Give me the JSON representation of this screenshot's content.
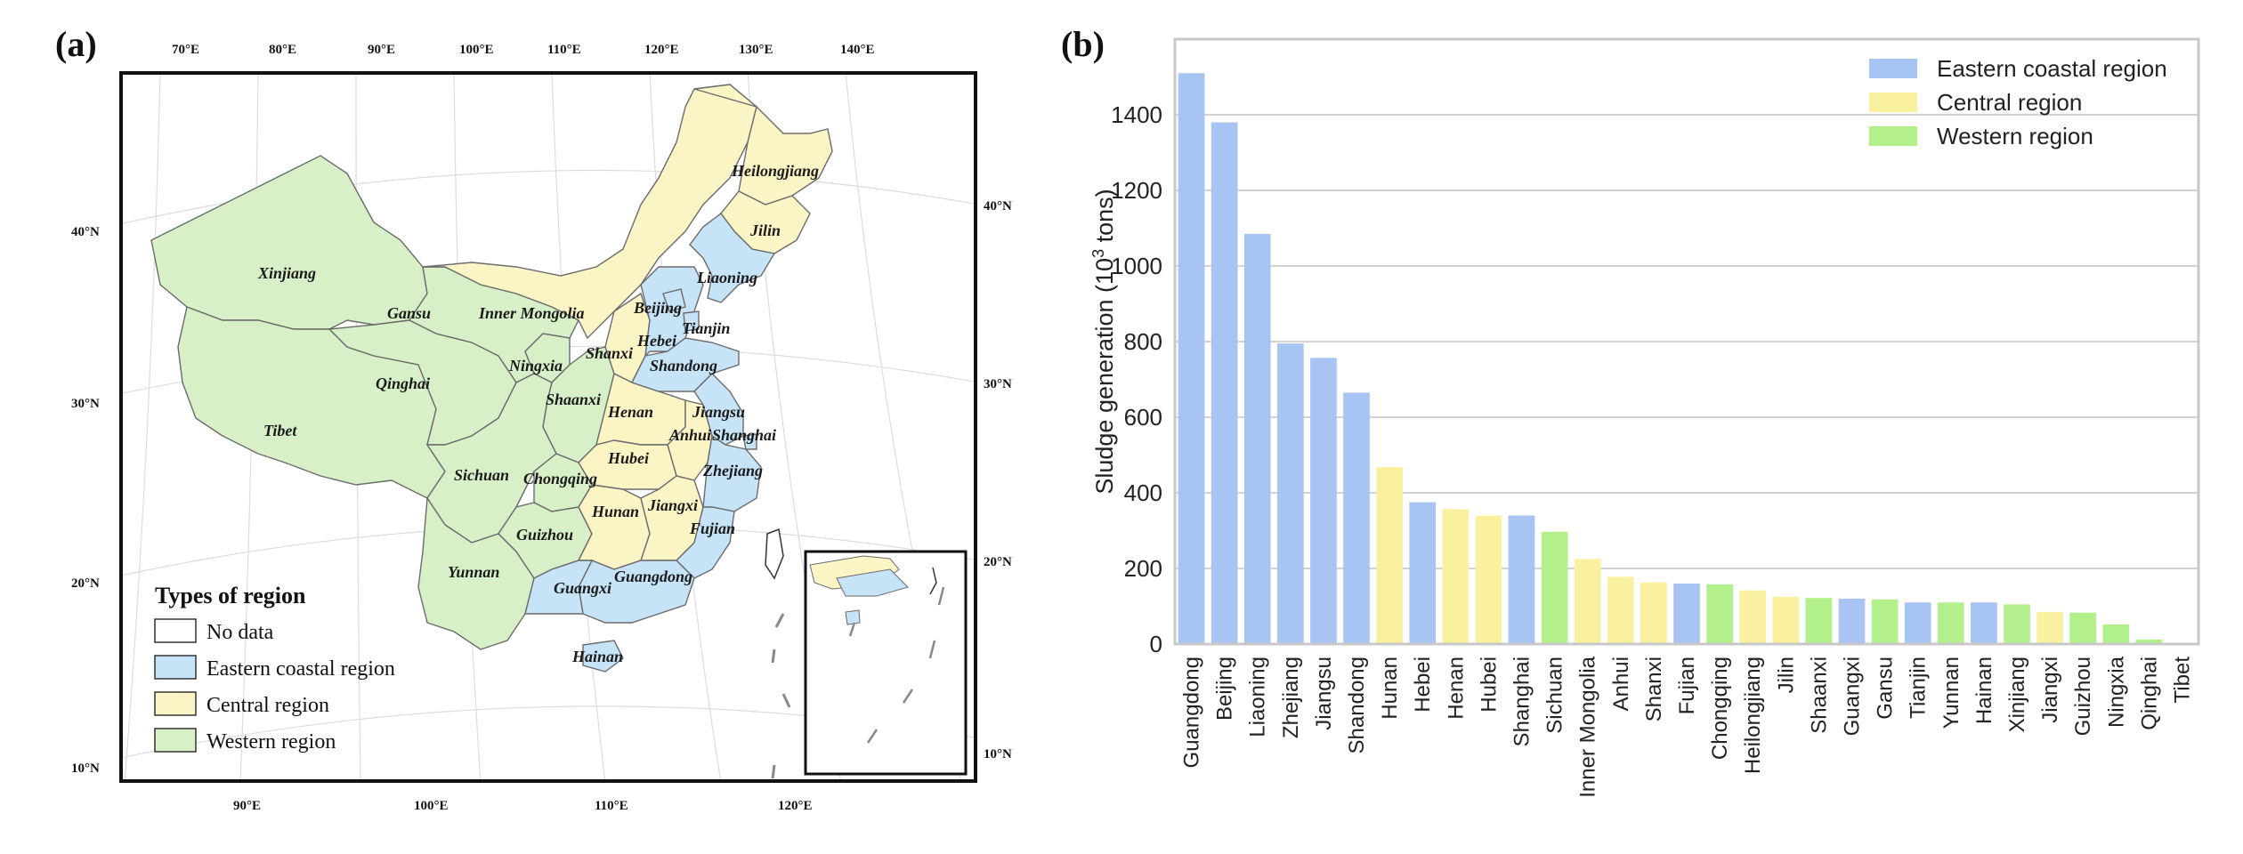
{
  "panel_a": {
    "label": "(a)",
    "top_lon_labels": [
      "70°E",
      "80°E",
      "90°E",
      "100°E",
      "110°E",
      "120°E",
      "130°E",
      "140°E"
    ],
    "bottom_lon_labels": [
      "90°E",
      "100°E",
      "110°E",
      "120°E"
    ],
    "left_lat_labels": [
      "40°N",
      "30°N",
      "20°N",
      "10°N"
    ],
    "right_lat_labels": [
      "40°N",
      "30°N",
      "20°N",
      "10°N"
    ],
    "legend": {
      "title": "Types of region",
      "items": [
        {
          "label": "No data",
          "color": "#ffffff"
        },
        {
          "label": "Eastern coastal region",
          "color": "#c6e3f7"
        },
        {
          "label": "Central region",
          "color": "#fbf5c6"
        },
        {
          "label": "Western region",
          "color": "#d8f0c8"
        }
      ]
    },
    "provinces": [
      {
        "name": "Xinjiang",
        "region": "western"
      },
      {
        "name": "Tibet",
        "region": "western"
      },
      {
        "name": "Qinghai",
        "region": "western"
      },
      {
        "name": "Gansu",
        "region": "western"
      },
      {
        "name": "Inner Mongolia",
        "region": "central"
      },
      {
        "name": "Ningxia",
        "region": "western"
      },
      {
        "name": "Shaanxi",
        "region": "western"
      },
      {
        "name": "Sichuan",
        "region": "western"
      },
      {
        "name": "Chongqing",
        "region": "western"
      },
      {
        "name": "Yunnan",
        "region": "western"
      },
      {
        "name": "Guizhou",
        "region": "western"
      },
      {
        "name": "Guangxi",
        "region": "eastern"
      },
      {
        "name": "Heilongjiang",
        "region": "central"
      },
      {
        "name": "Jilin",
        "region": "central"
      },
      {
        "name": "Liaoning",
        "region": "eastern"
      },
      {
        "name": "Beijing",
        "region": "eastern"
      },
      {
        "name": "Tianjin",
        "region": "eastern"
      },
      {
        "name": "Hebei",
        "region": "eastern"
      },
      {
        "name": "Shanxi",
        "region": "central"
      },
      {
        "name": "Shandong",
        "region": "eastern"
      },
      {
        "name": "Henan",
        "region": "central"
      },
      {
        "name": "Jiangsu",
        "region": "eastern"
      },
      {
        "name": "Anhui",
        "region": "central"
      },
      {
        "name": "Shanghai",
        "region": "eastern"
      },
      {
        "name": "Hubei",
        "region": "central"
      },
      {
        "name": "Zhejiang",
        "region": "eastern"
      },
      {
        "name": "Hunan",
        "region": "central"
      },
      {
        "name": "Jiangxi",
        "region": "central"
      },
      {
        "name": "Fujian",
        "region": "eastern"
      },
      {
        "name": "Guangdong",
        "region": "eastern"
      },
      {
        "name": "Hainan",
        "region": "eastern"
      }
    ]
  },
  "panel_b": {
    "label": "(b)"
  },
  "chart_data": {
    "type": "bar",
    "title": "",
    "xlabel": "",
    "ylabel_main": "Sludge generation (10",
    "ylabel_sup": "3",
    "ylabel_end": " tons)",
    "ylim": [
      0,
      1600
    ],
    "yticks": [
      0,
      200,
      400,
      600,
      800,
      1000,
      1200,
      1400
    ],
    "grid": "horizontal",
    "legend_position": "top-right",
    "legend": [
      {
        "label": "Eastern coastal region",
        "color": "#a7c4f2"
      },
      {
        "label": "Central region",
        "color": "#f9f0a0"
      },
      {
        "label": "Western region",
        "color": "#b2f08c"
      }
    ],
    "categories": [
      "Guangdong",
      "Beijing",
      "Liaoning",
      "Zhejiang",
      "Jiangsu",
      "Shandong",
      "Hunan",
      "Hebei",
      "Henan",
      "Hubei",
      "Shanghai",
      "Sichuan",
      "Inner Mongolia",
      "Anhui",
      "Shanxi",
      "Fujian",
      "Chongqing",
      "Heilongjiang",
      "Jilin",
      "Shaanxi",
      "Guangxi",
      "Gansu",
      "Tianjin",
      "Yunnan",
      "Hainan",
      "Xinjiang",
      "Jiangxi",
      "Guizhou",
      "Ningxia",
      "Qinghai",
      "Tibet"
    ],
    "values": [
      1510,
      1380,
      1085,
      795,
      757,
      665,
      468,
      375,
      357,
      340,
      340,
      297,
      225,
      178,
      163,
      160,
      158,
      142,
      125,
      122,
      120,
      118,
      110,
      110,
      110,
      105,
      85,
      83,
      52,
      12,
      2
    ],
    "regions": [
      "Eastern coastal region",
      "Eastern coastal region",
      "Eastern coastal region",
      "Eastern coastal region",
      "Eastern coastal region",
      "Eastern coastal region",
      "Central region",
      "Eastern coastal region",
      "Central region",
      "Central region",
      "Eastern coastal region",
      "Western region",
      "Central region",
      "Central region",
      "Central region",
      "Eastern coastal region",
      "Western region",
      "Central region",
      "Central region",
      "Western region",
      "Eastern coastal region",
      "Western region",
      "Eastern coastal region",
      "Western region",
      "Eastern coastal region",
      "Western region",
      "Central region",
      "Western region",
      "Western region",
      "Western region",
      "Western region"
    ]
  }
}
